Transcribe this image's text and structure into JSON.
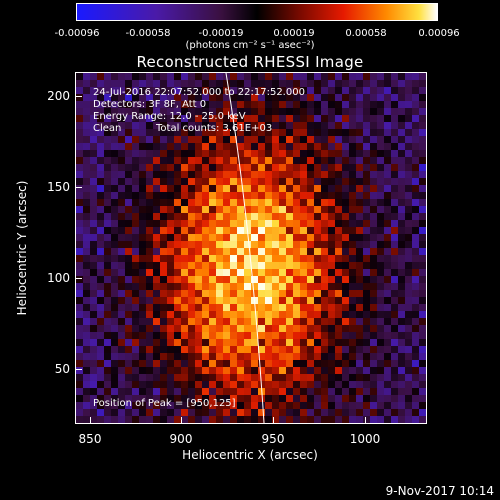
{
  "colorbar": {
    "ticks": [
      "-0.00096",
      "-0.00058",
      "-0.00019",
      "0.00019",
      "0.00058",
      "0.00096"
    ],
    "units": "(photons cm⁻² s⁻¹ asec⁻²)"
  },
  "title": "Reconstructed RHESSI Image",
  "info": {
    "time": "24-Jul-2016 22:07:52.000 to 22:17:52.000",
    "detectors": "Detectors: 3F 8F, Att 0",
    "energy": "Energy Range: 12.0 - 25.0 keV",
    "clean": "Clean",
    "counts": "Total counts: 3.61E+03",
    "peak": "Position of Peak = [950,125]"
  },
  "axes": {
    "xlabel": "Heliocentric X (arcsec)",
    "ylabel": "Heliocentric Y (arcsec)",
    "xticks": [
      "850",
      "900",
      "950",
      "1000"
    ],
    "yticks": [
      "200",
      "150",
      "100",
      "50"
    ],
    "xlim": [
      840,
      1032
    ],
    "ylim": [
      18,
      210
    ]
  },
  "footer": "9-Nov-2017 10:14"
}
